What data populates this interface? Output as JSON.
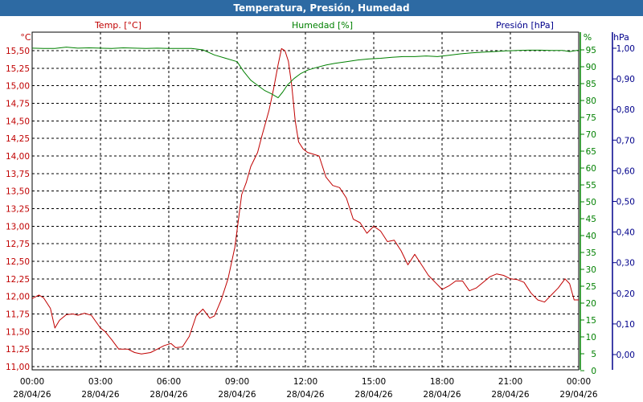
{
  "window": {
    "title": "Temperatura, Presión, Humedad"
  },
  "chart_data": {
    "type": "line",
    "title": "Temperatura, Presión, Humedad",
    "colors": {
      "temp": "#c00000",
      "hum": "#008000",
      "pres": "#00008b",
      "grid": "#000000"
    },
    "x_ticks": [
      {
        "t": 0,
        "time": "00:00",
        "date": "28/04/26"
      },
      {
        "t": 3,
        "time": "03:00",
        "date": "28/04/26"
      },
      {
        "t": 6,
        "time": "06:00",
        "date": "28/04/26"
      },
      {
        "t": 9,
        "time": "09:00",
        "date": "28/04/26"
      },
      {
        "t": 12,
        "time": "12:00",
        "date": "28/04/26"
      },
      {
        "t": 15,
        "time": "15:00",
        "date": "28/04/26"
      },
      {
        "t": 18,
        "time": "18:00",
        "date": "28/04/26"
      },
      {
        "t": 21,
        "time": "21:00",
        "date": "28/04/26"
      },
      {
        "t": 24,
        "time": "00:00",
        "date": "29/04/26"
      }
    ],
    "xlim": [
      0,
      24
    ],
    "axes": {
      "temp": {
        "label": "Temp. [°C]",
        "unit": "°C",
        "ylim": [
          11.0,
          15.75
        ],
        "ticks": [
          {
            "v": 11.0,
            "label": "11,00"
          },
          {
            "v": 11.25,
            "label": "11,25"
          },
          {
            "v": 11.5,
            "label": "11,50"
          },
          {
            "v": 11.75,
            "label": "11,75"
          },
          {
            "v": 12.0,
            "label": "12,00"
          },
          {
            "v": 12.25,
            "label": "12,25"
          },
          {
            "v": 12.5,
            "label": "12,50"
          },
          {
            "v": 12.75,
            "label": "12,75"
          },
          {
            "v": 13.0,
            "label": "13,00"
          },
          {
            "v": 13.25,
            "label": "13,25"
          },
          {
            "v": 13.5,
            "label": "13,50"
          },
          {
            "v": 13.75,
            "label": "13,75"
          },
          {
            "v": 14.0,
            "label": "14,00"
          },
          {
            "v": 14.25,
            "label": "14,25"
          },
          {
            "v": 14.5,
            "label": "14,50"
          },
          {
            "v": 14.75,
            "label": "14,75"
          },
          {
            "v": 15.0,
            "label": "15,00"
          },
          {
            "v": 15.25,
            "label": "15,25"
          },
          {
            "v": 15.5,
            "label": "15,50"
          }
        ]
      },
      "hum": {
        "label": "Humedad [%]",
        "unit": "%",
        "ylim": [
          0,
          100
        ],
        "ticks": [
          {
            "v": 0,
            "label": "0"
          },
          {
            "v": 5,
            "label": "5"
          },
          {
            "v": 10,
            "label": "10"
          },
          {
            "v": 15,
            "label": "15"
          },
          {
            "v": 20,
            "label": "20"
          },
          {
            "v": 25,
            "label": "25"
          },
          {
            "v": 30,
            "label": "30"
          },
          {
            "v": 35,
            "label": "35"
          },
          {
            "v": 40,
            "label": "40"
          },
          {
            "v": 45,
            "label": "45"
          },
          {
            "v": 50,
            "label": "50"
          },
          {
            "v": 55,
            "label": "55"
          },
          {
            "v": 60,
            "label": "60"
          },
          {
            "v": 65,
            "label": "65"
          },
          {
            "v": 70,
            "label": "70"
          },
          {
            "v": 75,
            "label": "75"
          },
          {
            "v": 80,
            "label": "80"
          },
          {
            "v": 85,
            "label": "85"
          },
          {
            "v": 90,
            "label": "90"
          },
          {
            "v": 95,
            "label": "95"
          }
        ]
      },
      "pres": {
        "label": "Presión [hPa]",
        "unit": "hPa",
        "ylim": [
          -0.05,
          1.05
        ],
        "ticks": [
          {
            "v": 0.0,
            "label": "0,00"
          },
          {
            "v": 0.1,
            "label": "0,10"
          },
          {
            "v": 0.2,
            "label": "0,20"
          },
          {
            "v": 0.3,
            "label": "0,30"
          },
          {
            "v": 0.4,
            "label": "0,40"
          },
          {
            "v": 0.5,
            "label": "0,50"
          },
          {
            "v": 0.6,
            "label": "0,60"
          },
          {
            "v": 0.7,
            "label": "0,70"
          },
          {
            "v": 0.8,
            "label": "0,80"
          },
          {
            "v": 0.9,
            "label": "0,90"
          },
          {
            "v": 1.0,
            "label": "1,00"
          }
        ]
      }
    },
    "series": [
      {
        "name": "Temp. [°C]",
        "axis": "temp",
        "x": [
          0,
          0.3,
          0.5,
          0.8,
          1.0,
          1.2,
          1.5,
          1.8,
          2.0,
          2.3,
          2.6,
          3.0,
          3.2,
          3.5,
          3.8,
          4.2,
          4.5,
          4.8,
          5.2,
          5.5,
          5.8,
          6.1,
          6.3,
          6.6,
          6.9,
          7.2,
          7.5,
          7.8,
          8.0,
          8.3,
          8.6,
          8.9,
          9.2,
          9.4,
          9.6,
          9.9,
          10.1,
          10.4,
          10.6,
          10.8,
          10.95,
          11.1,
          11.25,
          11.4,
          11.55,
          11.7,
          11.9,
          12.1,
          12.3,
          12.6,
          12.9,
          13.2,
          13.5,
          13.8,
          14.1,
          14.4,
          14.7,
          15.0,
          15.3,
          15.6,
          15.9,
          16.2,
          16.5,
          16.8,
          17.1,
          17.4,
          17.7,
          18.0,
          18.3,
          18.6,
          18.9,
          19.2,
          19.5,
          19.8,
          20.1,
          20.4,
          20.7,
          21.0,
          21.3,
          21.6,
          21.9,
          22.2,
          22.5,
          22.8,
          23.1,
          23.4,
          23.6,
          23.8,
          24.0
        ],
        "values": [
          11.97,
          12.02,
          11.98,
          11.83,
          11.55,
          11.66,
          11.74,
          11.75,
          11.73,
          11.76,
          11.73,
          11.55,
          11.5,
          11.38,
          11.25,
          11.25,
          11.2,
          11.18,
          11.2,
          11.25,
          11.3,
          11.33,
          11.27,
          11.28,
          11.43,
          11.72,
          11.82,
          11.69,
          11.72,
          11.95,
          12.25,
          12.7,
          13.45,
          13.62,
          13.85,
          14.05,
          14.3,
          14.65,
          14.95,
          15.3,
          15.53,
          15.5,
          15.35,
          15.0,
          14.5,
          14.2,
          14.1,
          14.05,
          14.03,
          14.0,
          13.7,
          13.58,
          13.55,
          13.4,
          13.1,
          13.05,
          12.9,
          13.0,
          12.93,
          12.78,
          12.8,
          12.65,
          12.45,
          12.6,
          12.45,
          12.3,
          12.2,
          12.1,
          12.15,
          12.22,
          12.22,
          12.08,
          12.12,
          12.2,
          12.28,
          12.32,
          12.3,
          12.25,
          12.24,
          12.2,
          12.05,
          11.95,
          11.92,
          12.02,
          12.12,
          12.25,
          12.18,
          11.95,
          11.95
        ]
      },
      {
        "name": "Humedad [%]",
        "axis": "hum",
        "x": [
          0,
          0.5,
          1.0,
          1.5,
          2.0,
          2.5,
          3.0,
          3.5,
          4.0,
          4.5,
          5.0,
          5.5,
          6.0,
          6.5,
          7.0,
          7.5,
          8.0,
          8.5,
          9.0,
          9.3,
          9.6,
          9.9,
          10.2,
          10.5,
          10.8,
          11.0,
          11.2,
          11.5,
          11.8,
          12.1,
          12.5,
          12.9,
          13.3,
          13.8,
          14.3,
          14.8,
          15.3,
          15.8,
          16.3,
          16.8,
          17.3,
          17.8,
          18.3,
          18.8,
          19.3,
          19.8,
          20.3,
          20.8,
          21.3,
          21.8,
          22.3,
          22.8,
          23.3,
          23.6,
          24.0
        ],
        "values": [
          95.5,
          95.4,
          95.4,
          95.8,
          95.5,
          95.6,
          95.5,
          95.4,
          95.6,
          95.5,
          95.4,
          95.5,
          95.4,
          95.4,
          95.4,
          95.0,
          93.5,
          92.5,
          91.5,
          88.5,
          86.0,
          84.5,
          83.0,
          82.0,
          80.8,
          82.5,
          84.5,
          86.5,
          88.0,
          89.0,
          89.8,
          90.5,
          91.0,
          91.5,
          92.0,
          92.3,
          92.5,
          92.8,
          93.0,
          93.0,
          93.2,
          93.0,
          93.4,
          93.8,
          94.1,
          94.3,
          94.5,
          94.7,
          94.8,
          94.9,
          94.9,
          94.8,
          94.8,
          94.5,
          94.9
        ]
      }
    ]
  }
}
